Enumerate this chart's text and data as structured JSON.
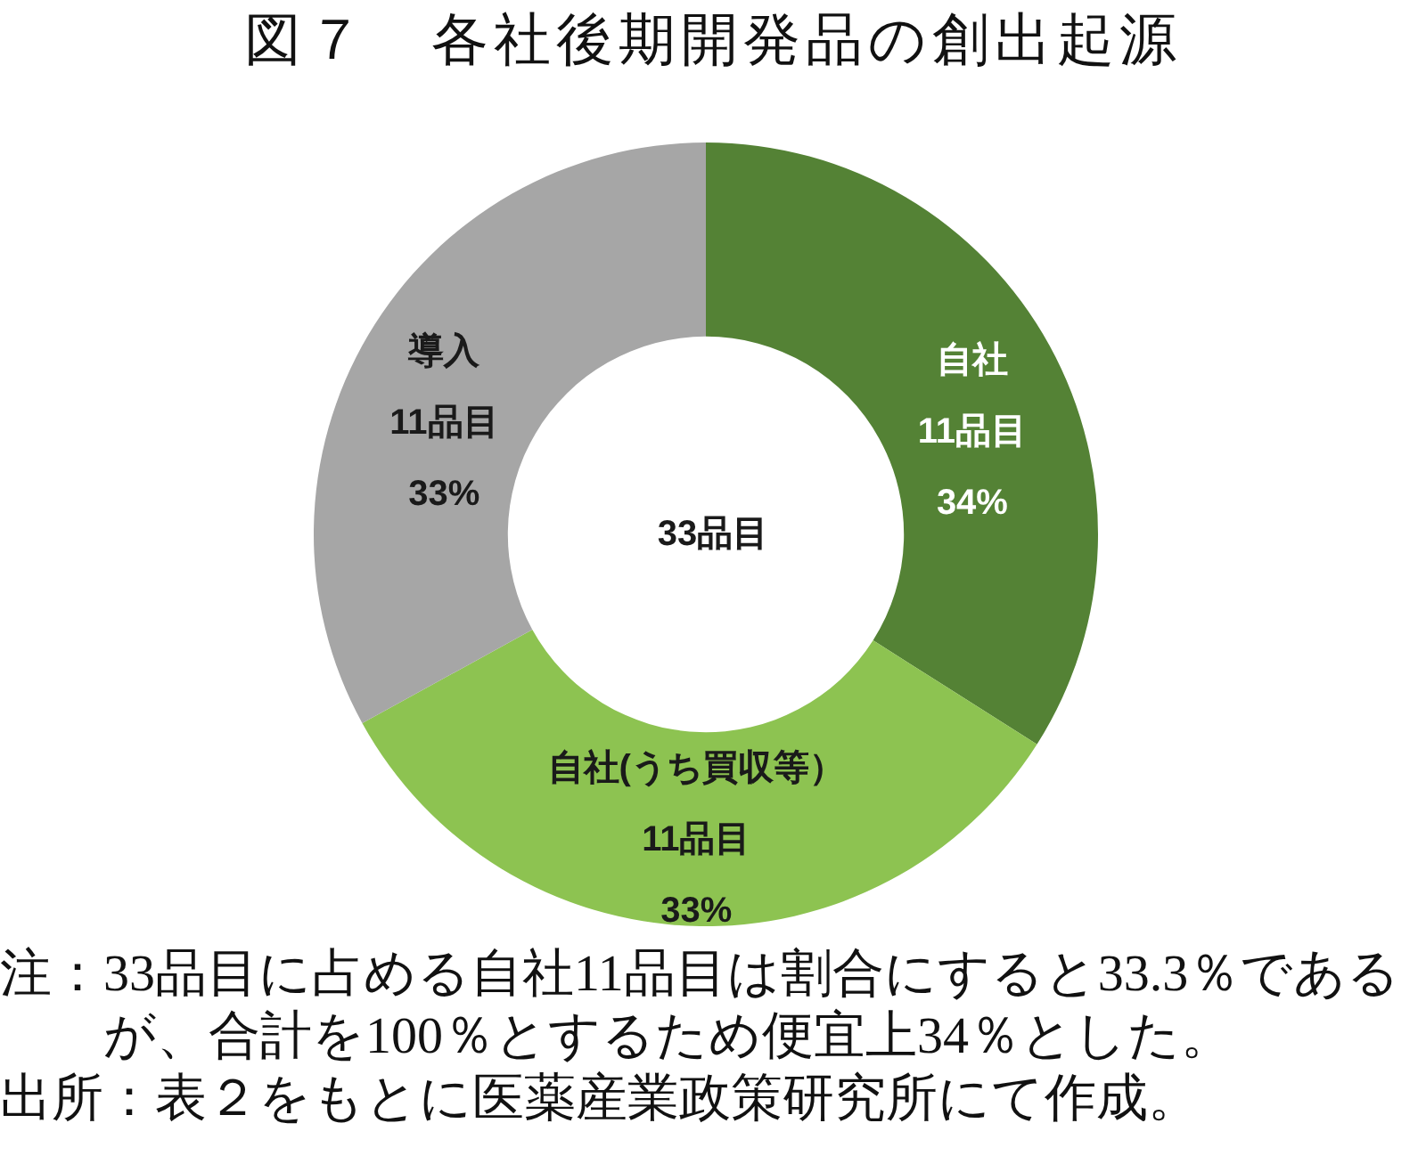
{
  "chart_data": {
    "type": "donut",
    "title": "図７　各社後期開発品の創出起源",
    "categories": [
      "自社",
      "自社(うち買収等）",
      "導入"
    ],
    "values": [
      34,
      33,
      33
    ],
    "colors": [
      "#548235",
      "#8dc351",
      "#a6a6a6"
    ],
    "value_labels": [
      "11品目\n34%",
      "11品目\n33%",
      "11品目\n33%"
    ],
    "annotations": [
      "33品目",
      "注：33品目に占める自社11品目は割合にすると33.3％であるが、合計を100％とするため便宜上34％とした。",
      "出所：表２をもとに医薬産業政策研究所にて作成。"
    ]
  }
}
